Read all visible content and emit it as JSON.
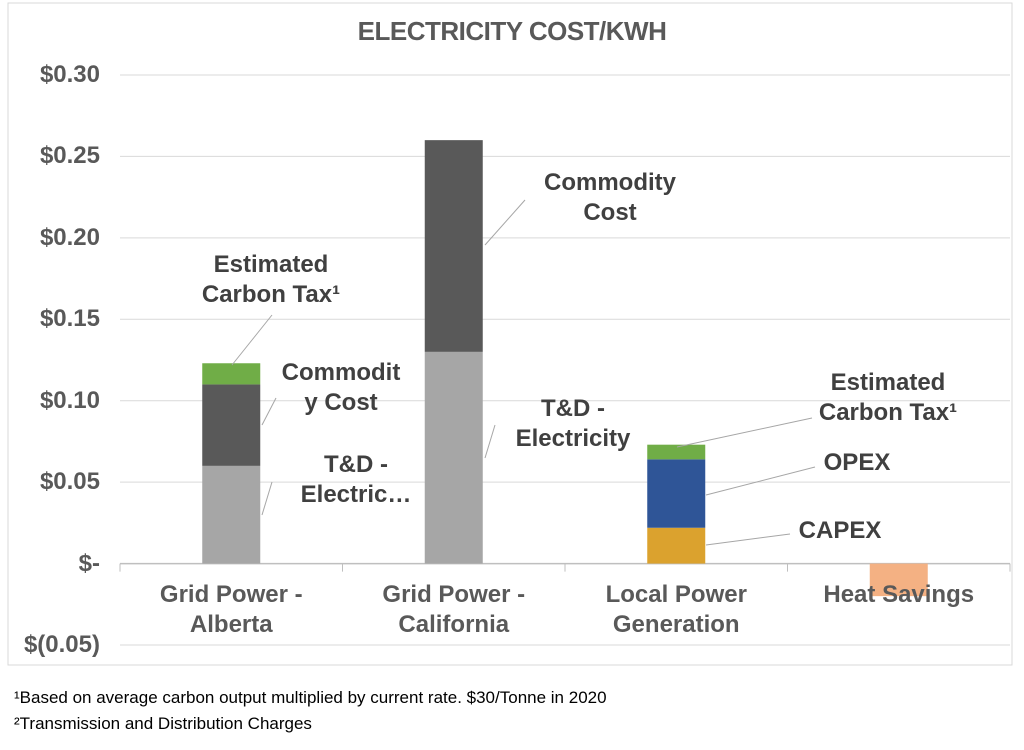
{
  "chart_data": {
    "type": "stacked_bar",
    "title": "ELECTRICITY COST/KWH",
    "categories": [
      "Grid Power - Alberta",
      "Grid Power - California",
      "Local Power Generation",
      "Heat Savings"
    ],
    "series": [
      {
        "name": "T&D - Electricity",
        "color": "#a6a6a6",
        "values": [
          0.06,
          0.13,
          null,
          null
        ]
      },
      {
        "name": "Commodity Cost",
        "color": "#595959",
        "values": [
          0.05,
          0.13,
          null,
          null
        ]
      },
      {
        "name": "CAPEX",
        "color": "#dba22e",
        "values": [
          null,
          null,
          0.022,
          null
        ]
      },
      {
        "name": "OPEX",
        "color": "#2f5597",
        "values": [
          null,
          null,
          0.042,
          null
        ]
      },
      {
        "name": "Estimated Carbon Tax¹",
        "color": "#70ad47",
        "values": [
          0.013,
          null,
          0.009,
          null
        ]
      },
      {
        "color": "#f4b183",
        "values": [
          null,
          null,
          null,
          -0.02
        ]
      }
    ],
    "annotations": [
      "Estimated Carbon Tax¹",
      "Commodit y Cost",
      "T&D - Electric…"
    ],
    "ylim": [
      -0.05,
      0.3
    ],
    "yticks": [
      {
        "value": -0.05,
        "label": "$(0.05)"
      },
      {
        "value": 0,
        "label": "$-"
      },
      {
        "value": 0.05,
        "label": "$0.05"
      },
      {
        "value": 0.1,
        "label": "$0.10"
      },
      {
        "value": 0.15,
        "label": "$0.15"
      },
      {
        "value": 0.2,
        "label": "$0.20"
      },
      {
        "value": 0.25,
        "label": "$0.25"
      },
      {
        "value": 0.3,
        "label": "$0.30"
      }
    ],
    "grid": true,
    "footnotes": [
      "¹Based on average carbon output multiplied by current rate. $30/Tonne in 2020",
      "²Transmission and Distribution Charges"
    ]
  }
}
